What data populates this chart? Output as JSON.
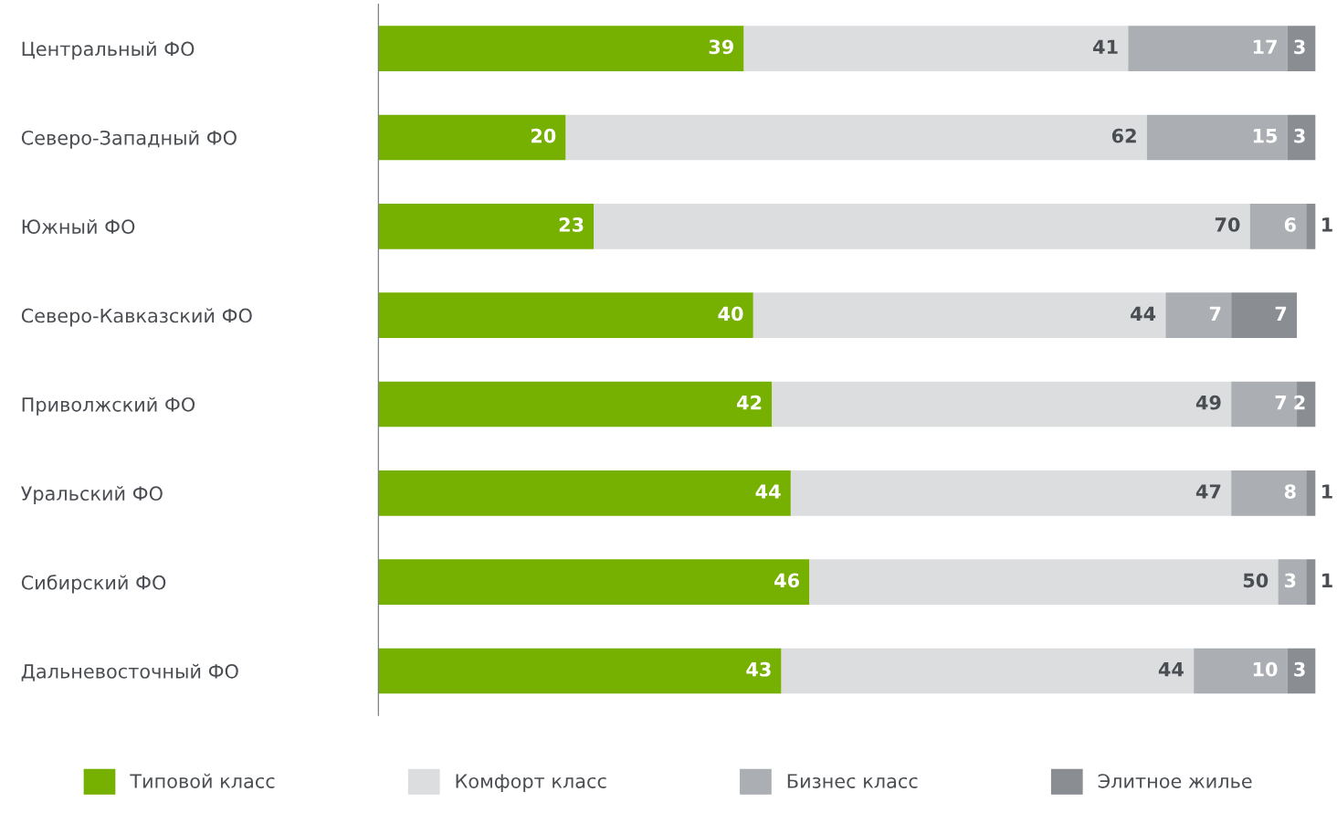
{
  "chart_data": {
    "type": "bar",
    "orientation": "horizontal",
    "stacked": true,
    "categories": [
      "Центральный ФО",
      "Северо-Западный ФО",
      "Южный ФО",
      "Северо-Кавказский ФО",
      "Приволжский ФО",
      "Уральский ФО",
      "Сибирский ФО",
      "Дальневосточный ФО"
    ],
    "series": [
      {
        "name": "Типовой класс",
        "color": "#76b000",
        "values": [
          39,
          20,
          23,
          40,
          42,
          44,
          46,
          43
        ]
      },
      {
        "name": "Комфорт класс",
        "color": "#dcdddf",
        "values": [
          41,
          62,
          70,
          44,
          49,
          47,
          50,
          44
        ]
      },
      {
        "name": "Бизнес класс",
        "color": "#abaeb2",
        "values": [
          17,
          15,
          6,
          7,
          7,
          8,
          3,
          10
        ]
      },
      {
        "name": "Элитное жилье",
        "color": "#8a8d92",
        "values": [
          3,
          3,
          1,
          7,
          2,
          1,
          1,
          3
        ]
      }
    ],
    "xlim": [
      0,
      100
    ],
    "data_labels": true,
    "legend": "bottom",
    "grid": false,
    "tick_labels": "y"
  }
}
